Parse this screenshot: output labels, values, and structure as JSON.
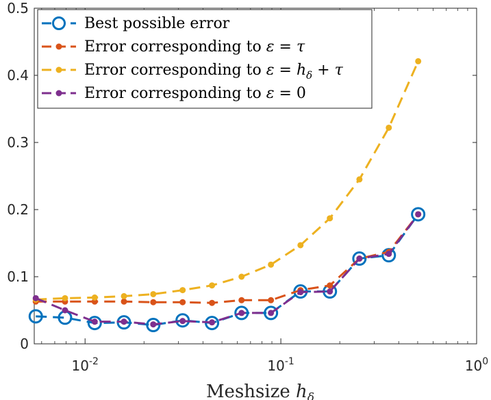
{
  "chart_data": {
    "type": "line",
    "xscale": "log",
    "xlim": [
      0.0055,
      1.0
    ],
    "ylim": [
      0,
      0.5
    ],
    "xlabel": "Meshsize",
    "xlabel_math": "h",
    "xlabel_sub": "δ",
    "yticks": [
      {
        "value": 0,
        "label": "0"
      },
      {
        "value": 0.1,
        "label": "0.1"
      },
      {
        "value": 0.2,
        "label": "0.2"
      },
      {
        "value": 0.3,
        "label": "0.3"
      },
      {
        "value": 0.4,
        "label": "0.4"
      },
      {
        "value": 0.5,
        "label": "0.5"
      }
    ],
    "xticks": [
      {
        "value": 0.01,
        "base": "10",
        "exp": "-2"
      },
      {
        "value": 0.1,
        "base": "10",
        "exp": "-1"
      },
      {
        "value": 1.0,
        "base": "10",
        "exp": "0"
      }
    ],
    "legend_position": "top-left",
    "x": [
      0.0056,
      0.0079,
      0.0112,
      0.0158,
      0.0223,
      0.0315,
      0.0445,
      0.063,
      0.089,
      0.126,
      0.178,
      0.252,
      0.356,
      0.503
    ],
    "series": [
      {
        "name": "Best possible error",
        "legend_parts": [
          {
            "t": "Best possible error"
          }
        ],
        "color": "#0072BD",
        "marker": "circle",
        "values": [
          0.041,
          0.039,
          0.031,
          0.032,
          0.028,
          0.035,
          0.031,
          0.046,
          0.046,
          0.078,
          0.078,
          0.127,
          0.132,
          0.193
        ]
      },
      {
        "name": "Error corresponding to ε = τ",
        "legend_parts": [
          {
            "t": "Error corresponding to "
          },
          {
            "t": "ε",
            "i": true
          },
          {
            "t": " = "
          },
          {
            "t": "τ",
            "i": true
          }
        ],
        "color": "#D95319",
        "marker": "dot",
        "values": [
          0.063,
          0.063,
          0.063,
          0.063,
          0.062,
          0.062,
          0.061,
          0.065,
          0.065,
          0.08,
          0.087,
          0.127,
          0.137,
          0.193
        ]
      },
      {
        "name": "Error corresponding to ε = hδ + τ",
        "legend_parts": [
          {
            "t": "Error corresponding to "
          },
          {
            "t": "ε",
            "i": true
          },
          {
            "t": " = "
          },
          {
            "t": "h",
            "i": true
          },
          {
            "t": "δ",
            "i": true,
            "sub": true
          },
          {
            "t": " + "
          },
          {
            "t": "τ",
            "i": true
          }
        ],
        "color": "#EDB120",
        "marker": "dot",
        "values": [
          0.066,
          0.068,
          0.069,
          0.071,
          0.074,
          0.08,
          0.087,
          0.1,
          0.118,
          0.147,
          0.187,
          0.245,
          0.322,
          0.421
        ]
      },
      {
        "name": "Error corresponding to ε = 0",
        "legend_parts": [
          {
            "t": "Error corresponding to "
          },
          {
            "t": "ε",
            "i": true
          },
          {
            "t": " = 0"
          }
        ],
        "color": "#7E2F8E",
        "marker": "dot",
        "values": [
          0.068,
          0.05,
          0.033,
          0.033,
          0.029,
          0.034,
          0.032,
          0.046,
          0.046,
          0.077,
          0.078,
          0.127,
          0.134,
          0.193
        ]
      }
    ]
  }
}
